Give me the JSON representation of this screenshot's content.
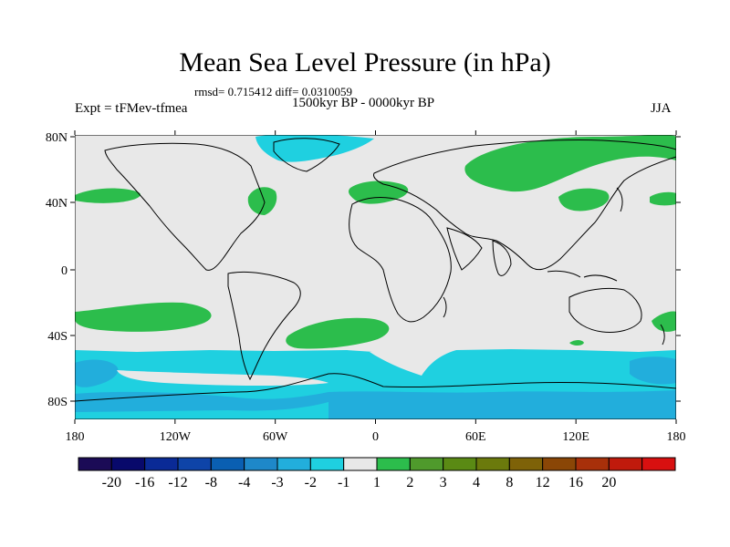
{
  "title": "Mean Sea Level Pressure (in hPa)",
  "stats": "rmsd= 0.715412 diff= 0.0310059",
  "experiment": "Expt = tFMev-tfmea",
  "period": "1500kyr BP - 0000kyr BP",
  "season": "JJA",
  "lat_ticks": [
    "80N",
    "40N",
    "0",
    "40S",
    "80S"
  ],
  "lon_ticks": [
    "180",
    "120W",
    "60W",
    "0",
    "60E",
    "120E",
    "180"
  ],
  "colorbar": {
    "colors": [
      "#1b0b56",
      "#08096b",
      "#0a2a96",
      "#0e44a8",
      "#0a5fb2",
      "#1e88c9",
      "#22aedc",
      "#1fd0e0",
      "#e8e8e8",
      "#2cbd4c",
      "#4f9a2c",
      "#5a8a14",
      "#6b7a0c",
      "#7e6208",
      "#8a4606",
      "#a8300a",
      "#c01a0c",
      "#d81010"
    ],
    "labels": [
      "-20",
      "-16",
      "-12",
      "-8",
      "-4",
      "-3",
      "-2",
      "-1",
      "1",
      "2",
      "3",
      "4",
      "8",
      "12",
      "16",
      "20"
    ]
  },
  "colors": {
    "neutral": "#e8e8e8",
    "green": "#2cbd4c",
    "cyan": "#1fd0e0",
    "blue": "#22aedc"
  }
}
